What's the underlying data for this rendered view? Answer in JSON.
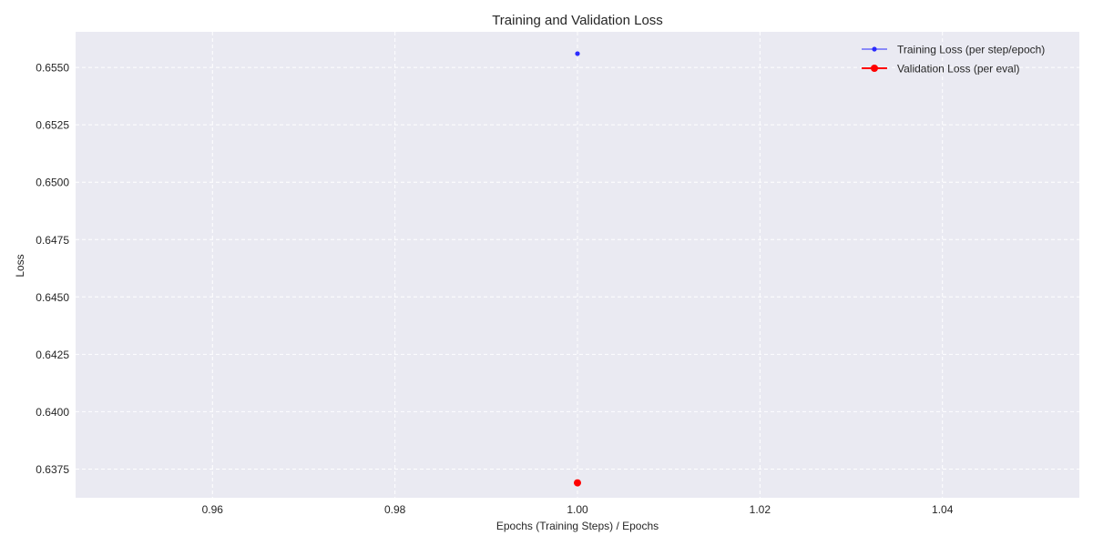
{
  "chart_data": {
    "type": "line",
    "title": "Training and Validation Loss",
    "xlabel": "Epochs (Training Steps) / Epochs",
    "ylabel": "Loss",
    "xlim": [
      0.945,
      1.055
    ],
    "ylim": [
      0.63625,
      0.65655
    ],
    "x_ticks": [
      0.96,
      0.98,
      1.0,
      1.02,
      1.04
    ],
    "x_tick_labels": [
      "0.96",
      "0.98",
      "1.00",
      "1.02",
      "1.04"
    ],
    "y_ticks": [
      0.6375,
      0.64,
      0.6425,
      0.645,
      0.6475,
      0.65,
      0.6525,
      0.655
    ],
    "y_tick_labels": [
      "0.6375",
      "0.6400",
      "0.6425",
      "0.6450",
      "0.6475",
      "0.6500",
      "0.6525",
      "0.6550"
    ],
    "grid": true,
    "legend_position": "top-right",
    "background_color": "#eaeaf2",
    "series": [
      {
        "name": "Training Loss (per step/epoch)",
        "color": "#2b2bff",
        "marker": "small-dot",
        "points": [
          {
            "x": 1.0,
            "y": 0.6556
          }
        ]
      },
      {
        "name": "Validation Loss (per eval)",
        "color": "#ff0000",
        "marker": "large-dot",
        "points": [
          {
            "x": 1.0,
            "y": 0.6369
          }
        ]
      }
    ]
  }
}
